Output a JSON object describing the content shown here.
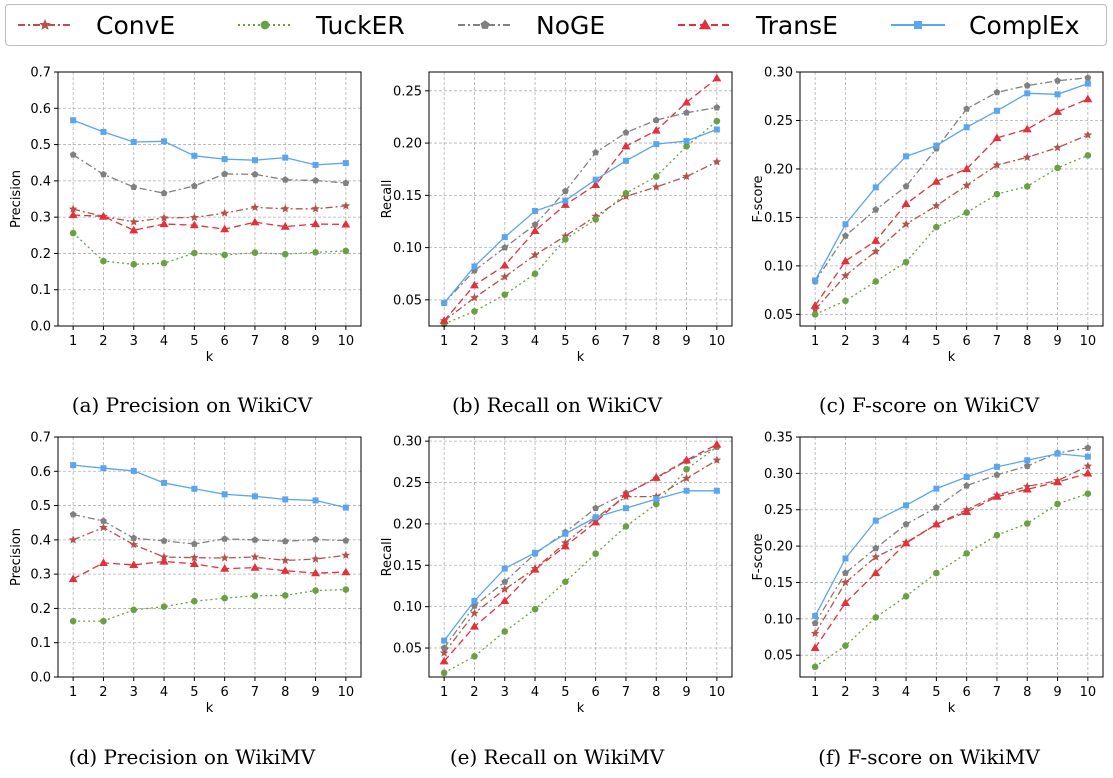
{
  "legend": {
    "entries": [
      {
        "name": "ConvE",
        "color": "#b5524b",
        "dash": "dashdot",
        "marker": "star"
      },
      {
        "name": "TuckER",
        "color": "#6aa043",
        "dash": "dotted",
        "marker": "circle"
      },
      {
        "name": "NoGE",
        "color": "#808080",
        "dash": "dashdot",
        "marker": "pentagon"
      },
      {
        "name": "TransE",
        "color": "#e3313c",
        "dash": "dashed",
        "marker": "triangle"
      },
      {
        "name": "ComplEx",
        "color": "#5aa5f0",
        "dash": "solid",
        "marker": "square"
      }
    ]
  },
  "chart_data": [
    {
      "type": "line",
      "caption": "(a) Precision on WikiCV",
      "xlabel": "k",
      "ylabel": "Precision",
      "x": [
        1,
        2,
        3,
        4,
        5,
        6,
        7,
        8,
        9,
        10
      ],
      "ylim": [
        0,
        0.7
      ],
      "yticks": [
        "0.0",
        "0.1",
        "0.2",
        "0.3",
        "0.4",
        "0.5",
        "0.6",
        "0.7"
      ],
      "series": [
        {
          "name": "ConvE",
          "values": [
            0.322,
            0.302,
            0.287,
            0.298,
            0.299,
            0.311,
            0.327,
            0.323,
            0.323,
            0.331
          ]
        },
        {
          "name": "TuckER",
          "values": [
            0.256,
            0.179,
            0.17,
            0.173,
            0.201,
            0.196,
            0.202,
            0.198,
            0.203,
            0.207
          ]
        },
        {
          "name": "NoGE",
          "values": [
            0.472,
            0.418,
            0.383,
            0.366,
            0.386,
            0.419,
            0.418,
            0.403,
            0.401,
            0.394
          ]
        },
        {
          "name": "TransE",
          "values": [
            0.306,
            0.302,
            0.264,
            0.281,
            0.278,
            0.267,
            0.286,
            0.274,
            0.281,
            0.28
          ]
        },
        {
          "name": "ComplEx",
          "values": [
            0.567,
            0.535,
            0.507,
            0.509,
            0.469,
            0.46,
            0.457,
            0.464,
            0.444,
            0.449
          ]
        }
      ]
    },
    {
      "type": "line",
      "caption": "(b) Recall on WikiCV",
      "xlabel": "k",
      "ylabel": "Recall",
      "x": [
        1,
        2,
        3,
        4,
        5,
        6,
        7,
        8,
        9,
        10
      ],
      "ylim": [
        0.025,
        0.268
      ],
      "yticks": [
        "0.05",
        "0.10",
        "0.15",
        "0.20",
        "0.25"
      ],
      "series": [
        {
          "name": "ConvE",
          "values": [
            0.03,
            0.052,
            0.072,
            0.093,
            0.111,
            0.13,
            0.149,
            0.158,
            0.168,
            0.182
          ]
        },
        {
          "name": "TuckER",
          "values": [
            0.027,
            0.039,
            0.055,
            0.075,
            0.108,
            0.127,
            0.152,
            0.168,
            0.197,
            0.221
          ]
        },
        {
          "name": "NoGE",
          "values": [
            0.047,
            0.078,
            0.1,
            0.122,
            0.154,
            0.191,
            0.21,
            0.222,
            0.229,
            0.234
          ]
        },
        {
          "name": "TransE",
          "values": [
            0.03,
            0.064,
            0.083,
            0.116,
            0.141,
            0.16,
            0.197,
            0.212,
            0.239,
            0.262
          ]
        },
        {
          "name": "ComplEx",
          "values": [
            0.047,
            0.082,
            0.11,
            0.135,
            0.145,
            0.165,
            0.183,
            0.199,
            0.202,
            0.213
          ]
        }
      ]
    },
    {
      "type": "line",
      "caption": "(c) F-score on WikiCV",
      "xlabel": "k",
      "ylabel": "F-score",
      "x": [
        1,
        2,
        3,
        4,
        5,
        6,
        7,
        8,
        9,
        10
      ],
      "ylim": [
        0.038,
        0.3
      ],
      "yticks": [
        "0.05",
        "0.10",
        "0.15",
        "0.20",
        "0.25",
        "0.30"
      ],
      "series": [
        {
          "name": "ConvE",
          "values": [
            0.055,
            0.09,
            0.115,
            0.143,
            0.162,
            0.183,
            0.204,
            0.212,
            0.222,
            0.235
          ]
        },
        {
          "name": "TuckER",
          "values": [
            0.05,
            0.064,
            0.084,
            0.104,
            0.14,
            0.155,
            0.174,
            0.182,
            0.201,
            0.214
          ]
        },
        {
          "name": "NoGE",
          "values": [
            0.084,
            0.131,
            0.158,
            0.182,
            0.221,
            0.262,
            0.279,
            0.286,
            0.291,
            0.294
          ]
        },
        {
          "name": "TransE",
          "values": [
            0.059,
            0.105,
            0.126,
            0.164,
            0.187,
            0.2,
            0.232,
            0.241,
            0.259,
            0.272
          ]
        },
        {
          "name": "ComplEx",
          "values": [
            0.085,
            0.143,
            0.181,
            0.213,
            0.224,
            0.243,
            0.26,
            0.278,
            0.277,
            0.288
          ]
        }
      ]
    },
    {
      "type": "line",
      "caption": "(d) Precision on WikiMV",
      "xlabel": "k",
      "ylabel": "Precision",
      "x": [
        1,
        2,
        3,
        4,
        5,
        6,
        7,
        8,
        9,
        10
      ],
      "ylim": [
        0,
        0.7
      ],
      "yticks": [
        "0.0",
        "0.1",
        "0.2",
        "0.3",
        "0.4",
        "0.5",
        "0.6",
        "0.7"
      ],
      "series": [
        {
          "name": "ConvE",
          "values": [
            0.4,
            0.436,
            0.386,
            0.35,
            0.348,
            0.347,
            0.35,
            0.34,
            0.344,
            0.355
          ]
        },
        {
          "name": "TuckER",
          "values": [
            0.163,
            0.163,
            0.196,
            0.205,
            0.221,
            0.23,
            0.237,
            0.238,
            0.252,
            0.255
          ]
        },
        {
          "name": "NoGE",
          "values": [
            0.474,
            0.455,
            0.405,
            0.397,
            0.388,
            0.403,
            0.4,
            0.396,
            0.401,
            0.398
          ]
        },
        {
          "name": "TransE",
          "values": [
            0.286,
            0.333,
            0.327,
            0.337,
            0.33,
            0.316,
            0.319,
            0.31,
            0.303,
            0.306
          ]
        },
        {
          "name": "ComplEx",
          "values": [
            0.618,
            0.609,
            0.601,
            0.566,
            0.549,
            0.533,
            0.527,
            0.518,
            0.515,
            0.494
          ]
        }
      ]
    },
    {
      "type": "line",
      "caption": "(e) Recall on WikiMV",
      "xlabel": "k",
      "ylabel": "Recall",
      "x": [
        1,
        2,
        3,
        4,
        5,
        6,
        7,
        8,
        9,
        10
      ],
      "ylim": [
        0.015,
        0.305
      ],
      "yticks": [
        "0.05",
        "0.10",
        "0.15",
        "0.20",
        "0.25",
        "0.30"
      ],
      "series": [
        {
          "name": "ConvE",
          "values": [
            0.044,
            0.092,
            0.121,
            0.146,
            0.177,
            0.207,
            0.233,
            0.233,
            0.255,
            0.277
          ]
        },
        {
          "name": "TuckER",
          "values": [
            0.02,
            0.04,
            0.07,
            0.097,
            0.13,
            0.164,
            0.197,
            0.224,
            0.266,
            0.293
          ]
        },
        {
          "name": "NoGE",
          "values": [
            0.05,
            0.101,
            0.13,
            0.164,
            0.19,
            0.219,
            0.237,
            0.255,
            0.276,
            0.293
          ]
        },
        {
          "name": "TransE",
          "values": [
            0.034,
            0.076,
            0.107,
            0.145,
            0.173,
            0.202,
            0.236,
            0.256,
            0.277,
            0.296
          ]
        },
        {
          "name": "ComplEx",
          "values": [
            0.059,
            0.107,
            0.146,
            0.165,
            0.188,
            0.208,
            0.219,
            0.23,
            0.24,
            0.24
          ]
        }
      ]
    },
    {
      "type": "line",
      "caption": "(f) F-score on WikiMV",
      "xlabel": "k",
      "ylabel": "F-score",
      "x": [
        1,
        2,
        3,
        4,
        5,
        6,
        7,
        8,
        9,
        10
      ],
      "ylim": [
        0.02,
        0.35
      ],
      "yticks": [
        "0.05",
        "0.10",
        "0.15",
        "0.20",
        "0.25",
        "0.30",
        "0.35"
      ],
      "series": [
        {
          "name": "ConvE",
          "values": [
            0.08,
            0.15,
            0.185,
            0.205,
            0.23,
            0.25,
            0.27,
            0.282,
            0.29,
            0.31
          ]
        },
        {
          "name": "TuckER",
          "values": [
            0.034,
            0.063,
            0.102,
            0.131,
            0.163,
            0.19,
            0.215,
            0.231,
            0.258,
            0.272
          ]
        },
        {
          "name": "NoGE",
          "values": [
            0.094,
            0.163,
            0.197,
            0.23,
            0.253,
            0.283,
            0.298,
            0.31,
            0.328,
            0.335
          ]
        },
        {
          "name": "TransE",
          "values": [
            0.06,
            0.122,
            0.163,
            0.204,
            0.23,
            0.247,
            0.268,
            0.278,
            0.288,
            0.3
          ]
        },
        {
          "name": "ComplEx",
          "values": [
            0.104,
            0.183,
            0.235,
            0.256,
            0.279,
            0.295,
            0.309,
            0.318,
            0.327,
            0.323
          ]
        }
      ]
    }
  ]
}
